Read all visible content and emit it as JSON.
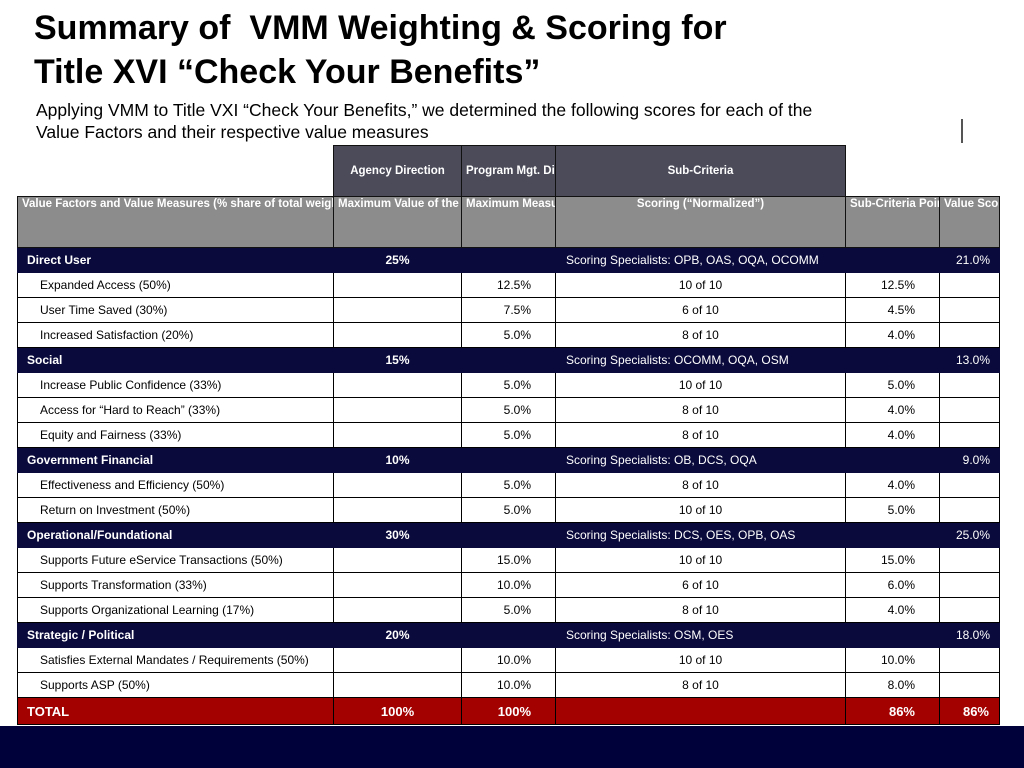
{
  "slide": {
    "title_line1": "Summary of  VMM Weighting & Scoring for",
    "title_line2": "Title XVI “Check Your Benefits”",
    "subtitle_line1": "Applying VMM to Title VXI “Check Your Benefits,” we determined the following scores for each of the",
    "subtitle_line2": "Value Factors and their respective value measures"
  },
  "table": {
    "group_headers": {
      "agency_direction": "Agency Direction",
      "program_direction": "Program Mgt. Direction",
      "sub_criteria": "Sub-Criteria"
    },
    "column_headers": {
      "factor": "Value Factors and Value Measures (% share of total weight)",
      "max_factor": "Maximum Value of the  Value Factors",
      "max_measure": "Maximum Measure Value",
      "scoring": "Scoring (“Normalized”)",
      "points": "Sub-Criteria Points (%)",
      "value_score": "Value Score"
    },
    "categories": [
      {
        "name": "Direct User",
        "weight": "25%",
        "specialists": "Scoring Specialists: OPB, OAS, OQA, OCOMM",
        "score": "21.0%",
        "items": [
          {
            "name": "Expanded Access (50%)",
            "max": "12.5%",
            "scoring": "10 of 10",
            "points": "12.5%"
          },
          {
            "name": "User Time Saved (30%)",
            "max": "7.5%",
            "scoring": "6 of 10",
            "points": "4.5%"
          },
          {
            "name": "Increased Satisfaction (20%)",
            "max": "5.0%",
            "scoring": "8 of 10",
            "points": "4.0%"
          }
        ]
      },
      {
        "name": "Social",
        "weight": "15%",
        "specialists": "Scoring Specialists: OCOMM, OQA, OSM",
        "score": "13.0%",
        "items": [
          {
            "name": "Increase Public Confidence (33%)",
            "max": "5.0%",
            "scoring": "10 of 10",
            "points": "5.0%"
          },
          {
            "name": "Access for “Hard to Reach” (33%)",
            "max": "5.0%",
            "scoring": "8 of 10",
            "points": "4.0%"
          },
          {
            "name": "Equity and Fairness (33%)",
            "max": "5.0%",
            "scoring": "8 of 10",
            "points": "4.0%"
          }
        ]
      },
      {
        "name": "Government Financial",
        "weight": "10%",
        "specialists": "Scoring Specialists: OB, DCS, OQA",
        "score": "9.0%",
        "items": [
          {
            "name": "Effectiveness and Efficiency  (50%)",
            "max": "5.0%",
            "scoring": "8 of 10",
            "points": "4.0%"
          },
          {
            "name": "Return on Investment (50%)",
            "max": "5.0%",
            "scoring": "10 of 10",
            "points": "5.0%"
          }
        ]
      },
      {
        "name": "Operational/Foundational",
        "weight": "30%",
        "specialists": "Scoring Specialists: DCS, OES, OPB, OAS",
        "score": "25.0%",
        "items": [
          {
            "name": "Supports Future eService Transactions (50%)",
            "max": "15.0%",
            "scoring": "10 of 10",
            "points": "15.0%"
          },
          {
            "name": "Supports Transformation (33%)",
            "max": "10.0%",
            "scoring": "6 of 10",
            "points": "6.0%"
          },
          {
            "name": "Supports Organizational Learning (17%)",
            "max": "5.0%",
            "scoring": "8 of 10",
            "points": "4.0%"
          }
        ]
      },
      {
        "name": "Strategic / Political",
        "weight": "20%",
        "specialists": "Scoring Specialists: OSM, OES",
        "score": "18.0%",
        "items": [
          {
            "name": "Satisfies External Mandates / Requirements (50%)",
            "max": "10.0%",
            "scoring": "10 of 10",
            "points": "10.0%"
          },
          {
            "name": "Supports ASP (50%)",
            "max": "10.0%",
            "scoring": "8 of 10",
            "points": "8.0%"
          }
        ]
      }
    ],
    "total": {
      "label": "TOTAL",
      "agency": "100%",
      "measure": "100%",
      "points": "86%",
      "score": "86%"
    }
  },
  "colors": {
    "category_row_bg": "#0a0a3c",
    "header_row_bg": "#8c8c8c",
    "group_header_bg": "#4b4b5a",
    "total_row_bg": "#a30000",
    "footer_bar_bg": "#00003a"
  }
}
